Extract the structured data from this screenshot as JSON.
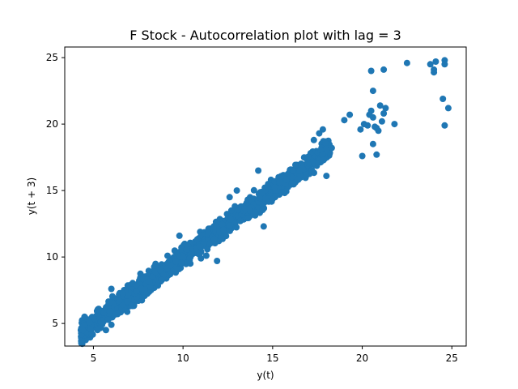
{
  "chart_data": {
    "type": "scatter",
    "title": "F Stock - Autocorrelation plot with lag = 3",
    "xlabel": "y(t)",
    "ylabel": "y(t + 3)",
    "xlim": [
      3.4,
      25.8
    ],
    "ylim": [
      3.3,
      25.8
    ],
    "xticks": [
      5,
      10,
      15,
      20,
      25
    ],
    "yticks": [
      5,
      10,
      15,
      20,
      25
    ],
    "grid": false,
    "marker_color": "#1f77b4",
    "main_band": {
      "x_range": [
        4.3,
        18.2
      ],
      "point_count": 1400,
      "slope": 1.0,
      "spread": 0.55
    },
    "points": [
      {
        "x": 20.3,
        "y": 19.9
      },
      {
        "x": 20.6,
        "y": 20.5
      },
      {
        "x": 20.8,
        "y": 19.7
      },
      {
        "x": 21.1,
        "y": 20.2
      },
      {
        "x": 20.1,
        "y": 20.0
      },
      {
        "x": 20.9,
        "y": 19.5
      },
      {
        "x": 21.2,
        "y": 20.8
      },
      {
        "x": 21.3,
        "y": 21.2
      },
      {
        "x": 20.5,
        "y": 21.0
      },
      {
        "x": 20.4,
        "y": 20.7
      },
      {
        "x": 21.0,
        "y": 21.4
      },
      {
        "x": 19.9,
        "y": 19.6
      },
      {
        "x": 20.7,
        "y": 19.8
      },
      {
        "x": 20.0,
        "y": 17.6
      },
      {
        "x": 20.8,
        "y": 17.7
      },
      {
        "x": 20.6,
        "y": 18.5
      },
      {
        "x": 20.6,
        "y": 22.5
      },
      {
        "x": 20.5,
        "y": 24.0
      },
      {
        "x": 21.2,
        "y": 24.1
      },
      {
        "x": 21.8,
        "y": 20.0
      },
      {
        "x": 22.5,
        "y": 24.6
      },
      {
        "x": 23.8,
        "y": 24.5
      },
      {
        "x": 24.0,
        "y": 24.1
      },
      {
        "x": 24.0,
        "y": 23.9
      },
      {
        "x": 24.1,
        "y": 24.7
      },
      {
        "x": 24.6,
        "y": 24.8
      },
      {
        "x": 24.6,
        "y": 24.5
      },
      {
        "x": 24.5,
        "y": 21.9
      },
      {
        "x": 24.8,
        "y": 21.2
      },
      {
        "x": 24.6,
        "y": 19.9
      },
      {
        "x": 19.0,
        "y": 20.3
      },
      {
        "x": 19.3,
        "y": 20.7
      },
      {
        "x": 18.3,
        "y": 18.2
      },
      {
        "x": 18.0,
        "y": 16.1
      },
      {
        "x": 17.8,
        "y": 19.6
      },
      {
        "x": 17.6,
        "y": 19.3
      },
      {
        "x": 17.3,
        "y": 18.8
      },
      {
        "x": 16.5,
        "y": 16.5
      },
      {
        "x": 14.5,
        "y": 12.3
      },
      {
        "x": 11.0,
        "y": 9.9
      },
      {
        "x": 11.9,
        "y": 9.7
      },
      {
        "x": 11.3,
        "y": 10.1
      },
      {
        "x": 5.7,
        "y": 4.5
      },
      {
        "x": 6.0,
        "y": 4.9
      },
      {
        "x": 5.9,
        "y": 6.6
      },
      {
        "x": 6.0,
        "y": 7.6
      },
      {
        "x": 4.5,
        "y": 5.5
      },
      {
        "x": 4.4,
        "y": 4.5
      },
      {
        "x": 9.8,
        "y": 11.6
      },
      {
        "x": 14.2,
        "y": 16.5
      },
      {
        "x": 13.0,
        "y": 15.0
      },
      {
        "x": 12.6,
        "y": 14.5
      }
    ]
  }
}
